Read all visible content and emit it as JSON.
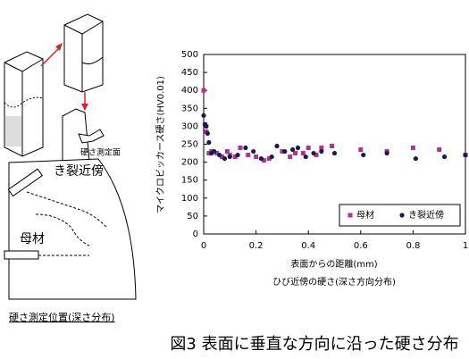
{
  "chart_data": {
    "type": "scatter",
    "y_label": "マイクロビッカース硬さ(HV0.01)",
    "x_label": "表面からの距離(mm)",
    "subtitle": "ひび近傍の硬さ(深さ方向分布)",
    "xlim": [
      0,
      1
    ],
    "xticks": [
      0,
      0.2,
      0.4,
      0.6,
      0.8,
      1
    ],
    "ylim": [
      0,
      500
    ],
    "yticks": [
      0,
      50,
      100,
      150,
      200,
      250,
      300,
      350,
      400,
      450,
      500
    ],
    "legend": "lower right",
    "series": [
      {
        "name": "母材",
        "color": "#b0309a",
        "marker": "square",
        "x": [
          0,
          0.005,
          0.01,
          0.02,
          0.03,
          0.05,
          0.07,
          0.09,
          0.1,
          0.12,
          0.14,
          0.17,
          0.2,
          0.23,
          0.25,
          0.3,
          0.33,
          0.35,
          0.38,
          0.4,
          0.43,
          0.45,
          0.49,
          0.6,
          0.7,
          0.8,
          0.9,
          1.0
        ],
        "values": [
          400,
          305,
          285,
          225,
          230,
          225,
          215,
          230,
          220,
          215,
          240,
          220,
          215,
          205,
          210,
          230,
          215,
          225,
          225,
          240,
          220,
          240,
          245,
          235,
          230,
          240,
          235,
          220
        ]
      },
      {
        "name": "き裂近傍",
        "color": "#1a1a50",
        "marker": "circle",
        "x": [
          0,
          0.005,
          0.01,
          0.015,
          0.02,
          0.03,
          0.04,
          0.06,
          0.08,
          0.1,
          0.13,
          0.16,
          0.19,
          0.22,
          0.26,
          0.28,
          0.31,
          0.34,
          0.36,
          0.39,
          0.42,
          0.45,
          0.5,
          0.61,
          0.7,
          0.81,
          0.92,
          1.0
        ],
        "values": [
          330,
          305,
          300,
          280,
          255,
          225,
          230,
          220,
          210,
          215,
          220,
          240,
          230,
          210,
          215,
          245,
          230,
          235,
          240,
          215,
          225,
          230,
          225,
          220,
          225,
          210,
          215,
          220
        ]
      }
    ]
  },
  "diagram": {
    "surface_label": "硬さ測定面",
    "crack_label": "き裂近傍",
    "base_label": "母材",
    "position_label": "硬さ測定位置(深さ分布)"
  },
  "caption": "図3 表面に垂直な方向に沿った硬さ分布"
}
